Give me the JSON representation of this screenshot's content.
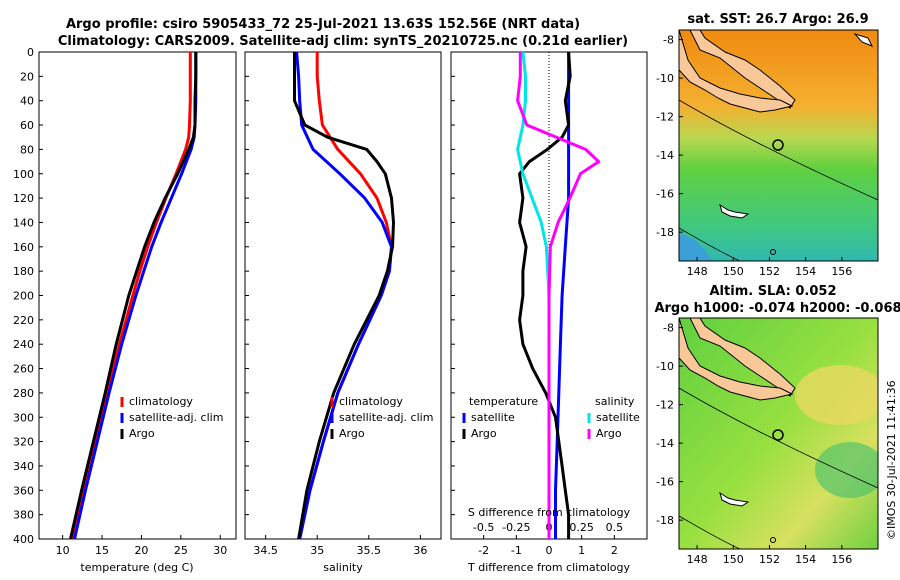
{
  "title": {
    "line1": "Argo profile: csiro 5905433_72 25-Jul-2021 13.63S 152.56E (NRT data)",
    "line2": "Climatology: CARS2009. Satellite-adj clim: synTS_20210725.nc (0.21d earlier)"
  },
  "map_sst_title": "sat. SST: 26.7 Argo: 26.9",
  "map_sla_title1": "Altim. SLA: 0.052",
  "map_sla_title2": "Argo h1000: -0.074 h2000: -0.068",
  "credit": "©IMOS 30-Jul-2021 11:41:36",
  "colors": {
    "climatology": "#ff0000",
    "satellite": "#0000ff",
    "argo": "#000000",
    "argo_sal": "#ff00ff",
    "sat_sal": "#00e5e5",
    "land": "#f8c898",
    "sst_warm": "#f0a020",
    "sst_cool": "#40c8a0",
    "sla_green": "#80dd40"
  },
  "chart_data": [
    {
      "type": "line",
      "name": "temperature",
      "xlabel": "temperature (deg C)",
      "ylabel": "",
      "xlim": [
        7,
        32
      ],
      "ylim": [
        400,
        0
      ],
      "xticks": [
        10,
        15,
        20,
        25,
        30
      ],
      "xtick_labels": [
        "10",
        "15",
        "20",
        "25",
        "30"
      ],
      "yticks": [
        0,
        20,
        40,
        60,
        80,
        100,
        120,
        140,
        160,
        180,
        200,
        220,
        240,
        260,
        280,
        300,
        320,
        340,
        360,
        380,
        400
      ],
      "legend": [
        "climatology",
        "satellite-adj. clim",
        "Argo"
      ],
      "series": [
        {
          "name": "climatology",
          "depth": [
            0,
            20,
            40,
            60,
            70,
            80,
            100,
            120,
            140,
            160,
            180,
            200,
            240,
            280,
            320,
            360,
            400
          ],
          "values": [
            26.2,
            26.2,
            26.2,
            26.1,
            26.0,
            25.6,
            24.4,
            23.1,
            21.9,
            20.8,
            19.8,
            18.9,
            17.2,
            15.7,
            14.2,
            12.7,
            11.3
          ]
        },
        {
          "name": "satellite-adj. clim",
          "depth": [
            0,
            20,
            40,
            60,
            70,
            80,
            100,
            120,
            140,
            160,
            180,
            200,
            240,
            280,
            320,
            360,
            400
          ],
          "values": [
            26.9,
            26.9,
            26.9,
            26.8,
            26.7,
            26.3,
            25.1,
            23.8,
            22.5,
            21.3,
            20.3,
            19.3,
            17.5,
            15.9,
            14.4,
            12.9,
            11.5
          ]
        },
        {
          "name": "Argo",
          "depth": [
            0,
            20,
            40,
            60,
            70,
            80,
            100,
            120,
            140,
            160,
            180,
            200,
            240,
            280,
            320,
            360,
            400
          ],
          "values": [
            26.9,
            26.9,
            26.8,
            26.8,
            26.6,
            26.0,
            24.6,
            23.0,
            21.6,
            20.4,
            19.4,
            18.4,
            16.8,
            15.4,
            13.9,
            12.4,
            11.0
          ]
        }
      ]
    },
    {
      "type": "line",
      "name": "salinity",
      "xlabel": "salinity",
      "xlim": [
        34.3,
        36.2
      ],
      "ylim": [
        400,
        0
      ],
      "xticks": [
        34.5,
        35,
        35.5,
        36
      ],
      "xtick_labels": [
        "34.5",
        "35",
        "35.5",
        "36"
      ],
      "legend": [
        "climatology",
        "satellite-adj. clim",
        "Argo"
      ],
      "series": [
        {
          "name": "climatology",
          "depth": [
            0,
            20,
            40,
            60,
            80,
            100,
            120,
            140,
            160,
            180,
            200,
            240,
            280,
            320,
            360,
            400
          ],
          "values": [
            35.0,
            35.0,
            35.02,
            35.05,
            35.2,
            35.42,
            35.58,
            35.67,
            35.72,
            35.7,
            35.62,
            35.4,
            35.2,
            35.06,
            34.93,
            34.83
          ]
        },
        {
          "name": "satellite-adj. clim",
          "depth": [
            0,
            20,
            40,
            60,
            80,
            100,
            120,
            140,
            160,
            180,
            200,
            240,
            280,
            320,
            360,
            400
          ],
          "values": [
            34.8,
            34.82,
            34.83,
            34.85,
            34.96,
            35.22,
            35.46,
            35.63,
            35.72,
            35.7,
            35.62,
            35.4,
            35.2,
            35.06,
            34.93,
            34.83
          ]
        },
        {
          "name": "Argo",
          "depth": [
            0,
            20,
            40,
            60,
            70,
            80,
            90,
            100,
            120,
            140,
            160,
            180,
            200,
            240,
            280,
            320,
            360,
            400
          ],
          "values": [
            34.78,
            34.78,
            34.78,
            34.88,
            35.1,
            35.48,
            35.58,
            35.66,
            35.72,
            35.74,
            35.73,
            35.68,
            35.6,
            35.36,
            35.16,
            35.02,
            34.9,
            34.82
          ]
        }
      ]
    },
    {
      "type": "line",
      "name": "difference",
      "xlabel": "T difference from climatology",
      "xlabel2": "S difference from climatology",
      "xlim": [
        -3,
        3
      ],
      "ylim": [
        400,
        0
      ],
      "xticks": [
        -2,
        -1,
        0,
        1,
        2
      ],
      "xtick_labels": [
        "-2",
        "-1",
        "0",
        "1",
        "2"
      ],
      "xticks2": [
        -0.5,
        -0.25,
        0,
        0.25,
        0.5
      ],
      "xtick_labels2": [
        "-0.5",
        "-0.25",
        "0",
        "0.25",
        "0.5"
      ],
      "legend_temperature": [
        "temperature",
        "satellite",
        "Argo"
      ],
      "legend_salinity": [
        "salinity",
        "satellite",
        "Argo"
      ],
      "series": [
        {
          "name": "temperature satellite",
          "depth": [
            0,
            40,
            80,
            120,
            160,
            200,
            240,
            280,
            320,
            360,
            400
          ],
          "values": [
            0.6,
            0.6,
            0.6,
            0.6,
            0.5,
            0.4,
            0.35,
            0.3,
            0.25,
            0.2,
            0.2
          ]
        },
        {
          "name": "temperature Argo",
          "depth": [
            0,
            20,
            40,
            60,
            70,
            80,
            90,
            100,
            120,
            140,
            160,
            180,
            200,
            220,
            240,
            260,
            280,
            300,
            320,
            340,
            360,
            380,
            400
          ],
          "values": [
            0.6,
            0.65,
            0.5,
            0.6,
            0.4,
            -0.05,
            -0.6,
            -0.9,
            -0.8,
            -0.9,
            -0.7,
            -0.8,
            -0.8,
            -0.9,
            -0.8,
            -0.5,
            -0.1,
            0.2,
            0.3,
            0.4,
            0.5,
            0.6,
            0.6
          ]
        },
        {
          "name": "salinity satellite",
          "depth": [
            0,
            20,
            40,
            60,
            80,
            100,
            140,
            160,
            200,
            280,
            360,
            400
          ],
          "values": [
            -0.2,
            -0.18,
            -0.18,
            -0.2,
            -0.24,
            -0.2,
            -0.06,
            -0.02,
            0.0,
            0.0,
            0.0,
            0.0
          ]
        },
        {
          "name": "salinity Argo",
          "depth": [
            0,
            20,
            40,
            60,
            80,
            90,
            100,
            120,
            140,
            160,
            200,
            280,
            360,
            400
          ],
          "values": [
            -0.22,
            -0.22,
            -0.24,
            -0.17,
            0.28,
            0.38,
            0.24,
            0.16,
            0.07,
            0.01,
            0.0,
            0.0,
            0.0,
            0.0
          ]
        }
      ]
    },
    {
      "type": "heatmap",
      "name": "sat-sst-map",
      "title": "sat. SST: 26.7 Argo: 26.9",
      "xlim": [
        147,
        158
      ],
      "ylim": [
        -19.5,
        -7.5
      ],
      "xticks": [
        148,
        150,
        152,
        154,
        156
      ],
      "xtick_labels": [
        "148",
        "150",
        "152",
        "154",
        "156"
      ],
      "yticks": [
        -8,
        -10,
        -12,
        -14,
        -16,
        -18
      ],
      "ytick_labels": [
        "-8",
        "-10",
        "-12",
        "-14",
        "-16",
        "-18"
      ],
      "argo_position": [
        152.56,
        -13.63
      ]
    },
    {
      "type": "heatmap",
      "name": "sla-map",
      "title": "Altim. SLA: 0.052",
      "xlim": [
        147,
        158
      ],
      "ylim": [
        -19.5,
        -7.5
      ],
      "xticks": [
        148,
        150,
        152,
        154,
        156
      ],
      "xtick_labels": [
        "148",
        "150",
        "152",
        "154",
        "156"
      ],
      "yticks": [
        -8,
        -10,
        -12,
        -14,
        -16,
        -18
      ],
      "ytick_labels": [
        "-8",
        "-10",
        "-12",
        "-14",
        "-16",
        "-18"
      ],
      "argo_position": [
        152.56,
        -13.63
      ]
    }
  ]
}
